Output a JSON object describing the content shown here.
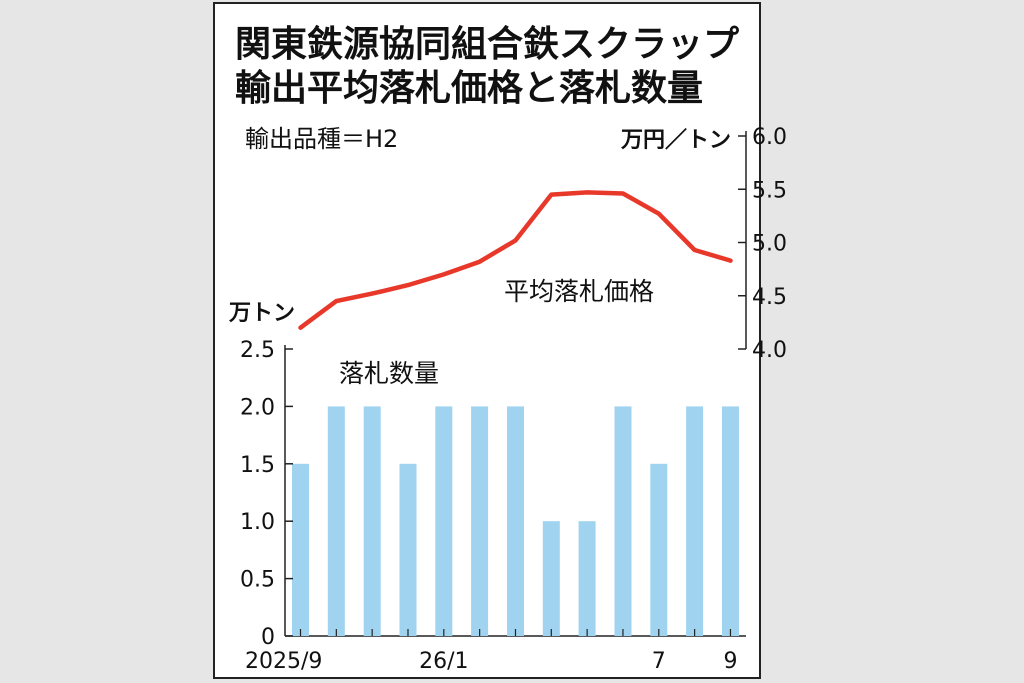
{
  "chart_data": {
    "type": "bar+line",
    "title_lines": [
      "関東鉄源協同組合鉄スクラップ",
      "輸出平均落札価格と落札数量"
    ],
    "subtitle": "輸出品種＝H2",
    "categories": [
      "2025/9",
      "",
      "",
      "",
      "26/1",
      "",
      "",
      "",
      "",
      "",
      "7",
      "",
      "9"
    ],
    "x_tick_labels": [
      "2025/9",
      "26/1",
      "7",
      "9"
    ],
    "series": [
      {
        "name": "落札数量",
        "kind": "bar",
        "axis": "left",
        "unit": "万トン",
        "color": "#9fd3ef",
        "values": [
          1.5,
          2.0,
          2.0,
          1.5,
          2.0,
          2.0,
          2.0,
          1.0,
          1.0,
          2.0,
          1.5,
          2.0,
          2.0
        ]
      },
      {
        "name": "平均落札価格",
        "kind": "line",
        "axis": "right",
        "unit": "万円／トン",
        "color": "#e8382a",
        "values": [
          4.2,
          4.45,
          4.52,
          4.6,
          4.7,
          4.82,
          5.02,
          5.45,
          5.47,
          5.46,
          5.27,
          4.93,
          4.83
        ]
      }
    ],
    "left_axis": {
      "unit": "万トン",
      "ylim": [
        0,
        2.5
      ],
      "ticks": [
        "0",
        "0.5",
        "1.0",
        "1.5",
        "2.0",
        "2.5"
      ]
    },
    "right_axis": {
      "unit": "万円／トン",
      "ylim": [
        4.0,
        6.0
      ],
      "ticks": [
        "4.0",
        "4.5",
        "5.0",
        "5.5",
        "6.0"
      ]
    },
    "grid": false,
    "legend": "inline labels"
  }
}
